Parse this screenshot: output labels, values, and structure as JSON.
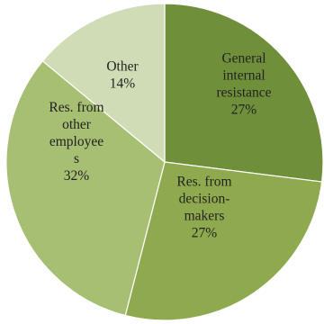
{
  "chart_data": {
    "type": "pie",
    "start_angle_deg": 0,
    "direction": "clockwise",
    "slices": [
      {
        "lines": [
          "General",
          "internal",
          "resistance",
          "27%"
        ],
        "value": 27,
        "color": "#6f8f3b"
      },
      {
        "lines": [
          "Res. from",
          "decision-",
          "makers",
          "27%"
        ],
        "value": 27,
        "color": "#8faa4e"
      },
      {
        "lines": [
          "Res. from",
          "other",
          "employee",
          "s",
          "32%"
        ],
        "value": 32,
        "color": "#a6bf72"
      },
      {
        "lines": [
          "Other",
          "14%"
        ],
        "value": 14,
        "color": "#d0dcb5"
      }
    ]
  }
}
